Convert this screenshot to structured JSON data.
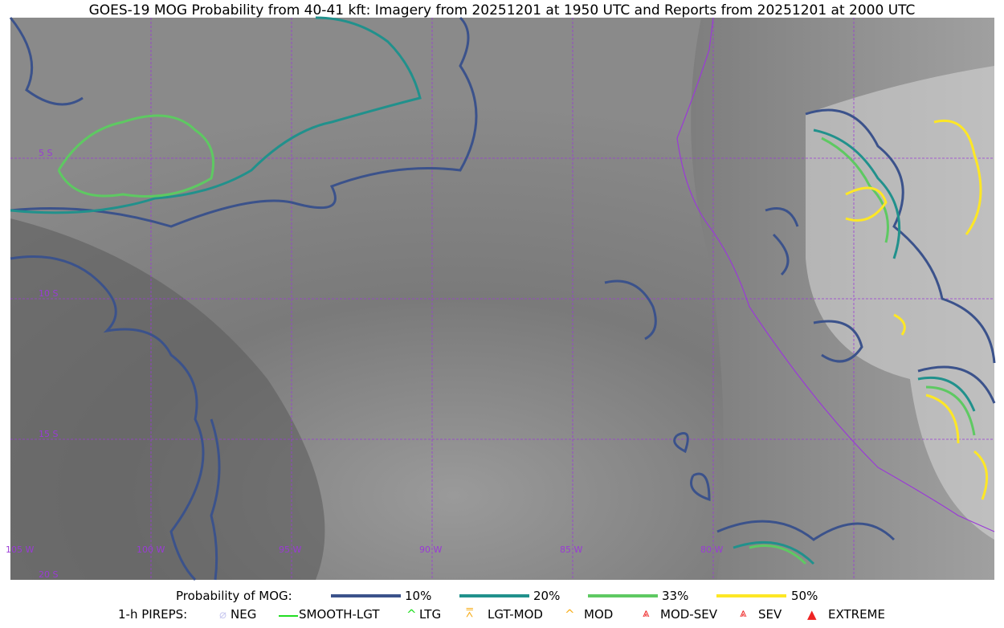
{
  "title": "GOES-19 MOG Probability from 40-41 kft: Imagery from 20251201 at 1950 UTC and Reports from 20251201 at 2000 UTC",
  "map": {
    "lon_labels": [
      "105 W",
      "100 W",
      "95 W",
      "90 W",
      "85 W",
      "80 W"
    ],
    "lat_labels": [
      "5 S",
      "10 S",
      "15 S",
      "20 S"
    ],
    "grid_color": "#9a3bd6",
    "coast_color": "#9a3bd6"
  },
  "legend": {
    "prob_title": "Probability of MOG:",
    "levels": [
      {
        "label": "10%",
        "color": "#3b528b"
      },
      {
        "label": "20%",
        "color": "#21918c"
      },
      {
        "label": "33%",
        "color": "#5ec962"
      },
      {
        "label": "50%",
        "color": "#fde725"
      }
    ],
    "pireps_title": "1-h PIREPS:",
    "pireps": [
      {
        "label": "NEG",
        "color": "#c8c8f0"
      },
      {
        "label": "SMOOTH-LGT",
        "color": "#22dd22"
      },
      {
        "label": "LTG",
        "color": "#22dd22"
      },
      {
        "label": "LGT-MOD",
        "color": "#f8b020"
      },
      {
        "label": "MOD",
        "color": "#f8b020"
      },
      {
        "label": "MOD-SEV",
        "color": "#ee2222"
      },
      {
        "label": "SEV",
        "color": "#ee2222"
      },
      {
        "label": "EXTREME",
        "color": "#ee2222"
      }
    ]
  }
}
